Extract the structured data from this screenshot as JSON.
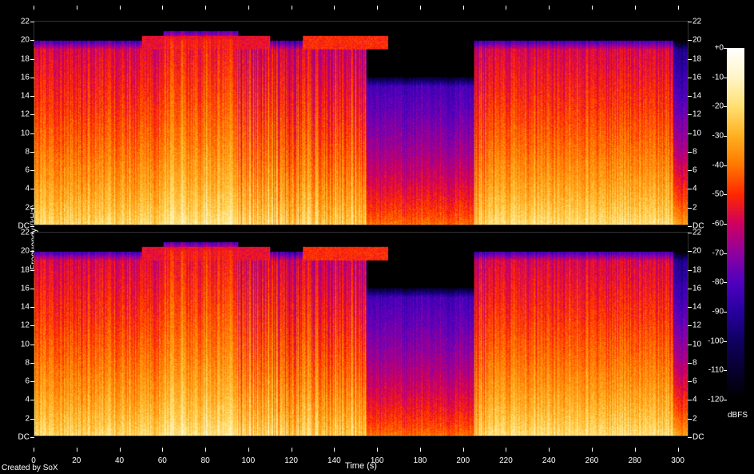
{
  "type": "spectrogram",
  "channels": 2,
  "footer": "Created by SoX",
  "background_color": "#000000",
  "text_color": "#ffffff",
  "axis_font_size": 10,
  "label_font_size": 11,
  "x_axis": {
    "label": "Time (s)",
    "min": 0,
    "max": 305,
    "tick_step": 20,
    "ticks": [
      0,
      20,
      40,
      60,
      80,
      100,
      120,
      140,
      160,
      180,
      200,
      220,
      240,
      260,
      280,
      300
    ]
  },
  "y_axis": {
    "label": "Frequency (kHz)",
    "min": 0,
    "max": 22,
    "dc_label": "DC",
    "top_label": "22",
    "ticks": [
      2,
      4,
      6,
      8,
      10,
      12,
      14,
      16,
      18,
      20
    ]
  },
  "colorbar": {
    "label": "dBFS",
    "min": -120,
    "max": 0,
    "tick_step": 10,
    "ticks": [
      0,
      -10,
      -20,
      -30,
      -40,
      -50,
      -60,
      -70,
      -80,
      -90,
      -100,
      -110,
      -120
    ],
    "tick_labels": [
      "+0",
      "-10",
      "-20",
      "-30",
      "-40",
      "-50",
      "-60",
      "-70",
      "-80",
      "-90",
      "-100",
      "-110",
      "-120"
    ],
    "stops": [
      {
        "db": 0,
        "color": "#ffffff"
      },
      {
        "db": -10,
        "color": "#fff6c8"
      },
      {
        "db": -20,
        "color": "#ffe070"
      },
      {
        "db": -30,
        "color": "#ffb020"
      },
      {
        "db": -40,
        "color": "#ff7800"
      },
      {
        "db": -50,
        "color": "#ff2800"
      },
      {
        "db": -60,
        "color": "#d00060"
      },
      {
        "db": -70,
        "color": "#9000a0"
      },
      {
        "db": -80,
        "color": "#5000c0"
      },
      {
        "db": -90,
        "color": "#2800a0"
      },
      {
        "db": -100,
        "color": "#100060"
      },
      {
        "db": -110,
        "color": "#080030"
      },
      {
        "db": -120,
        "color": "#000000"
      }
    ]
  },
  "spectrogram": {
    "time_bins": 305,
    "freq_bins": 22,
    "freq_khz_per_bin": 1,
    "segments": [
      {
        "t0": 0,
        "t1": 60,
        "cutoff_khz": 20,
        "low_db": -20,
        "high_db": -60,
        "noise": 0.08
      },
      {
        "t0": 60,
        "t1": 95,
        "cutoff_khz": 21,
        "low_db": -15,
        "high_db": -55,
        "noise": 0.1
      },
      {
        "t0": 95,
        "t1": 155,
        "cutoff_khz": 20,
        "low_db": -22,
        "high_db": -62,
        "noise": 0.14
      },
      {
        "t0": 155,
        "t1": 205,
        "cutoff_khz": 16,
        "low_db": -40,
        "high_db": -85,
        "noise": 0.06
      },
      {
        "t0": 205,
        "t1": 212,
        "cutoff_khz": 20,
        "low_db": -22,
        "high_db": -62,
        "noise": 0.14
      },
      {
        "t0": 212,
        "t1": 298,
        "cutoff_khz": 20,
        "low_db": -18,
        "high_db": -60,
        "noise": 0.08
      },
      {
        "t0": 298,
        "t1": 305,
        "cutoff_khz": 20,
        "low_db": -30,
        "high_db": -95,
        "noise": 0.05
      }
    ],
    "bands_20khz": [
      {
        "t": 50,
        "w": 60,
        "db": -55
      },
      {
        "t": 125,
        "w": 40,
        "db": -50
      }
    ],
    "fade_top_khz": 1.0
  }
}
